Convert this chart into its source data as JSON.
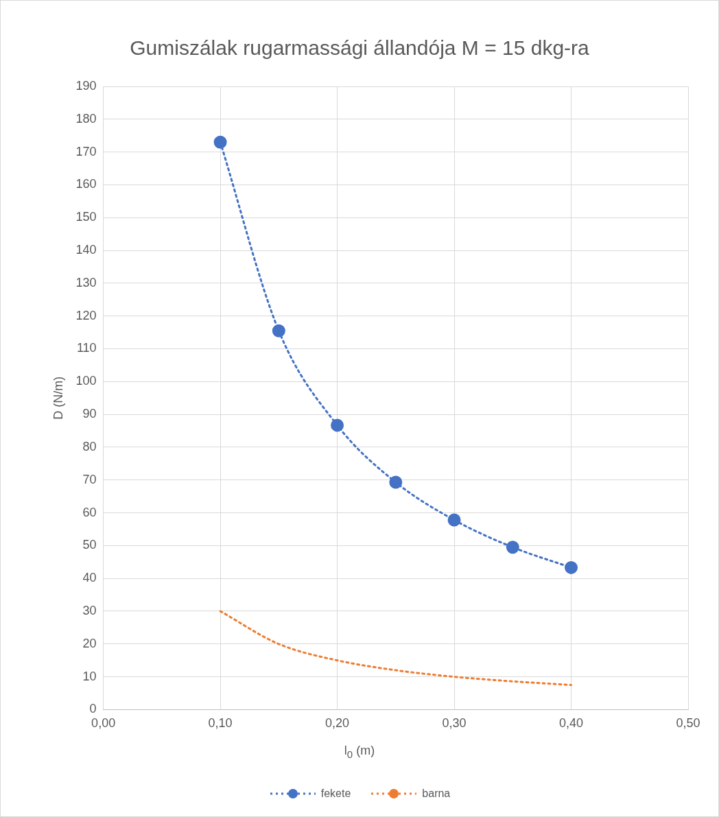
{
  "chart_data": {
    "type": "line",
    "title": "Gumiszálak rugarmassági állandója M = 15 dkg-ra",
    "xlabel": "l$_{0}$ (m)",
    "ylabel": "D (N/m)",
    "x": [
      0.1,
      0.15,
      0.2,
      0.25,
      0.3,
      0.35,
      0.4
    ],
    "series": [
      {
        "name": "fekete",
        "color": "#4472c4",
        "marker": "circle",
        "values": [
          173,
          115.5,
          86.7,
          69.3,
          57.8,
          49.5,
          43.3
        ]
      },
      {
        "name": "barna",
        "color": "#ed7d31",
        "marker": "none",
        "values": [
          30,
          20,
          15,
          12,
          10,
          8.6,
          7.5
        ]
      }
    ],
    "xlim": [
      0,
      0.5
    ],
    "xticks": [
      {
        "value": 0,
        "label": "0,00"
      },
      {
        "value": 0.1,
        "label": "0,10"
      },
      {
        "value": 0.2,
        "label": "0,20"
      },
      {
        "value": 0.3,
        "label": "0,30"
      },
      {
        "value": 0.4,
        "label": "0,40"
      },
      {
        "value": 0.5,
        "label": "0,50"
      }
    ],
    "ylim": [
      0,
      190
    ],
    "yticks": [
      0,
      10,
      20,
      30,
      40,
      50,
      60,
      70,
      80,
      90,
      100,
      110,
      120,
      130,
      140,
      150,
      160,
      170,
      180,
      190
    ],
    "grid": true,
    "legend": "bottom",
    "line_style": "dotted"
  }
}
